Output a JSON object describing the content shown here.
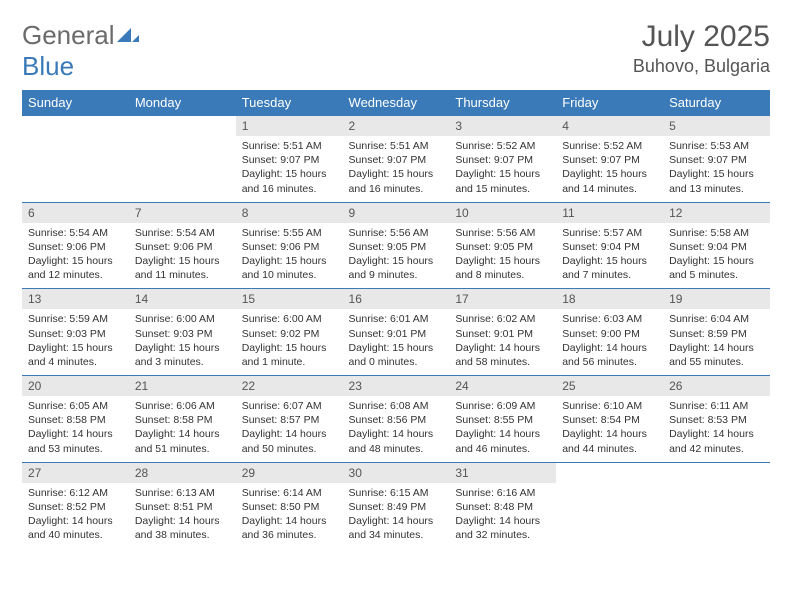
{
  "brand": {
    "part1": "General",
    "part2": "Blue"
  },
  "title": "July 2025",
  "location": "Buhovo, Bulgaria",
  "colors": {
    "header_bg": "#3a7ab8",
    "header_text": "#ffffff",
    "daynum_bg": "#e8e8e8",
    "border": "#3a7ab8",
    "logo_gray": "#6b6b6b"
  },
  "weekdays": [
    "Sunday",
    "Monday",
    "Tuesday",
    "Wednesday",
    "Thursday",
    "Friday",
    "Saturday"
  ],
  "weeks": [
    [
      {
        "n": "",
        "sr": "",
        "ss": "",
        "dl": ""
      },
      {
        "n": "",
        "sr": "",
        "ss": "",
        "dl": ""
      },
      {
        "n": "1",
        "sr": "5:51 AM",
        "ss": "9:07 PM",
        "dl": "15 hours and 16 minutes."
      },
      {
        "n": "2",
        "sr": "5:51 AM",
        "ss": "9:07 PM",
        "dl": "15 hours and 16 minutes."
      },
      {
        "n": "3",
        "sr": "5:52 AM",
        "ss": "9:07 PM",
        "dl": "15 hours and 15 minutes."
      },
      {
        "n": "4",
        "sr": "5:52 AM",
        "ss": "9:07 PM",
        "dl": "15 hours and 14 minutes."
      },
      {
        "n": "5",
        "sr": "5:53 AM",
        "ss": "9:07 PM",
        "dl": "15 hours and 13 minutes."
      }
    ],
    [
      {
        "n": "6",
        "sr": "5:54 AM",
        "ss": "9:06 PM",
        "dl": "15 hours and 12 minutes."
      },
      {
        "n": "7",
        "sr": "5:54 AM",
        "ss": "9:06 PM",
        "dl": "15 hours and 11 minutes."
      },
      {
        "n": "8",
        "sr": "5:55 AM",
        "ss": "9:06 PM",
        "dl": "15 hours and 10 minutes."
      },
      {
        "n": "9",
        "sr": "5:56 AM",
        "ss": "9:05 PM",
        "dl": "15 hours and 9 minutes."
      },
      {
        "n": "10",
        "sr": "5:56 AM",
        "ss": "9:05 PM",
        "dl": "15 hours and 8 minutes."
      },
      {
        "n": "11",
        "sr": "5:57 AM",
        "ss": "9:04 PM",
        "dl": "15 hours and 7 minutes."
      },
      {
        "n": "12",
        "sr": "5:58 AM",
        "ss": "9:04 PM",
        "dl": "15 hours and 5 minutes."
      }
    ],
    [
      {
        "n": "13",
        "sr": "5:59 AM",
        "ss": "9:03 PM",
        "dl": "15 hours and 4 minutes."
      },
      {
        "n": "14",
        "sr": "6:00 AM",
        "ss": "9:03 PM",
        "dl": "15 hours and 3 minutes."
      },
      {
        "n": "15",
        "sr": "6:00 AM",
        "ss": "9:02 PM",
        "dl": "15 hours and 1 minute."
      },
      {
        "n": "16",
        "sr": "6:01 AM",
        "ss": "9:01 PM",
        "dl": "15 hours and 0 minutes."
      },
      {
        "n": "17",
        "sr": "6:02 AM",
        "ss": "9:01 PM",
        "dl": "14 hours and 58 minutes."
      },
      {
        "n": "18",
        "sr": "6:03 AM",
        "ss": "9:00 PM",
        "dl": "14 hours and 56 minutes."
      },
      {
        "n": "19",
        "sr": "6:04 AM",
        "ss": "8:59 PM",
        "dl": "14 hours and 55 minutes."
      }
    ],
    [
      {
        "n": "20",
        "sr": "6:05 AM",
        "ss": "8:58 PM",
        "dl": "14 hours and 53 minutes."
      },
      {
        "n": "21",
        "sr": "6:06 AM",
        "ss": "8:58 PM",
        "dl": "14 hours and 51 minutes."
      },
      {
        "n": "22",
        "sr": "6:07 AM",
        "ss": "8:57 PM",
        "dl": "14 hours and 50 minutes."
      },
      {
        "n": "23",
        "sr": "6:08 AM",
        "ss": "8:56 PM",
        "dl": "14 hours and 48 minutes."
      },
      {
        "n": "24",
        "sr": "6:09 AM",
        "ss": "8:55 PM",
        "dl": "14 hours and 46 minutes."
      },
      {
        "n": "25",
        "sr": "6:10 AM",
        "ss": "8:54 PM",
        "dl": "14 hours and 44 minutes."
      },
      {
        "n": "26",
        "sr": "6:11 AM",
        "ss": "8:53 PM",
        "dl": "14 hours and 42 minutes."
      }
    ],
    [
      {
        "n": "27",
        "sr": "6:12 AM",
        "ss": "8:52 PM",
        "dl": "14 hours and 40 minutes."
      },
      {
        "n": "28",
        "sr": "6:13 AM",
        "ss": "8:51 PM",
        "dl": "14 hours and 38 minutes."
      },
      {
        "n": "29",
        "sr": "6:14 AM",
        "ss": "8:50 PM",
        "dl": "14 hours and 36 minutes."
      },
      {
        "n": "30",
        "sr": "6:15 AM",
        "ss": "8:49 PM",
        "dl": "14 hours and 34 minutes."
      },
      {
        "n": "31",
        "sr": "6:16 AM",
        "ss": "8:48 PM",
        "dl": "14 hours and 32 minutes."
      },
      {
        "n": "",
        "sr": "",
        "ss": "",
        "dl": ""
      },
      {
        "n": "",
        "sr": "",
        "ss": "",
        "dl": ""
      }
    ]
  ],
  "labels": {
    "sunrise": "Sunrise:",
    "sunset": "Sunset:",
    "daylight": "Daylight:"
  }
}
